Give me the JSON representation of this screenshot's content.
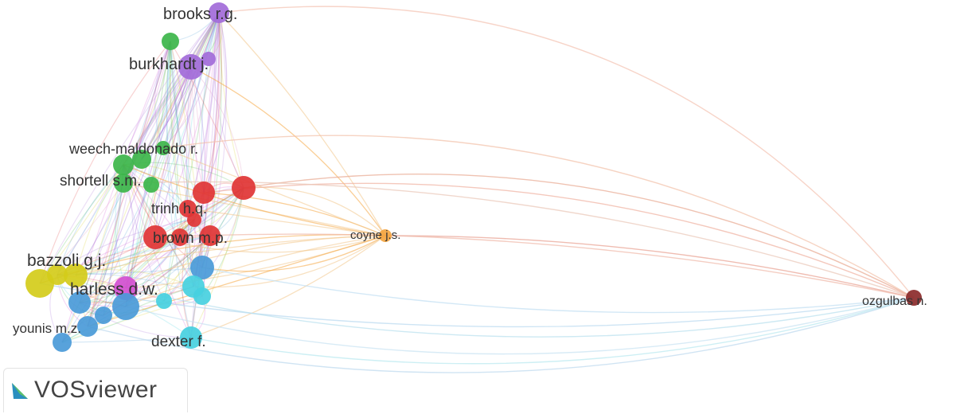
{
  "app": {
    "name": "VOSviewer"
  },
  "colors": {
    "purple": "#a26bd9",
    "green": "#3cb54a",
    "red": "#e03434",
    "yellow": "#d4cc1a",
    "blue": "#4a9ad8",
    "cyan": "#46d0e0",
    "orange": "#f5a540",
    "brown": "#8b2a2a",
    "magenta": "#d24fd0",
    "label": "#333333"
  },
  "labels": {
    "brooks": "brooks r.g.",
    "burkhardt": "burkhardt j.",
    "weech": "weech-maldonado r.",
    "shortell": "shortell s.m.",
    "trinh": "trinh h.q.",
    "brown": "brown m.p.",
    "coyne": "coyne j.s.",
    "bazzoli": "bazzoli g.j.",
    "harless": "harless d.w.",
    "younis": "younis m.z.",
    "dexter": "dexter f.",
    "ozgulbas": "ozgulbas n."
  }
}
